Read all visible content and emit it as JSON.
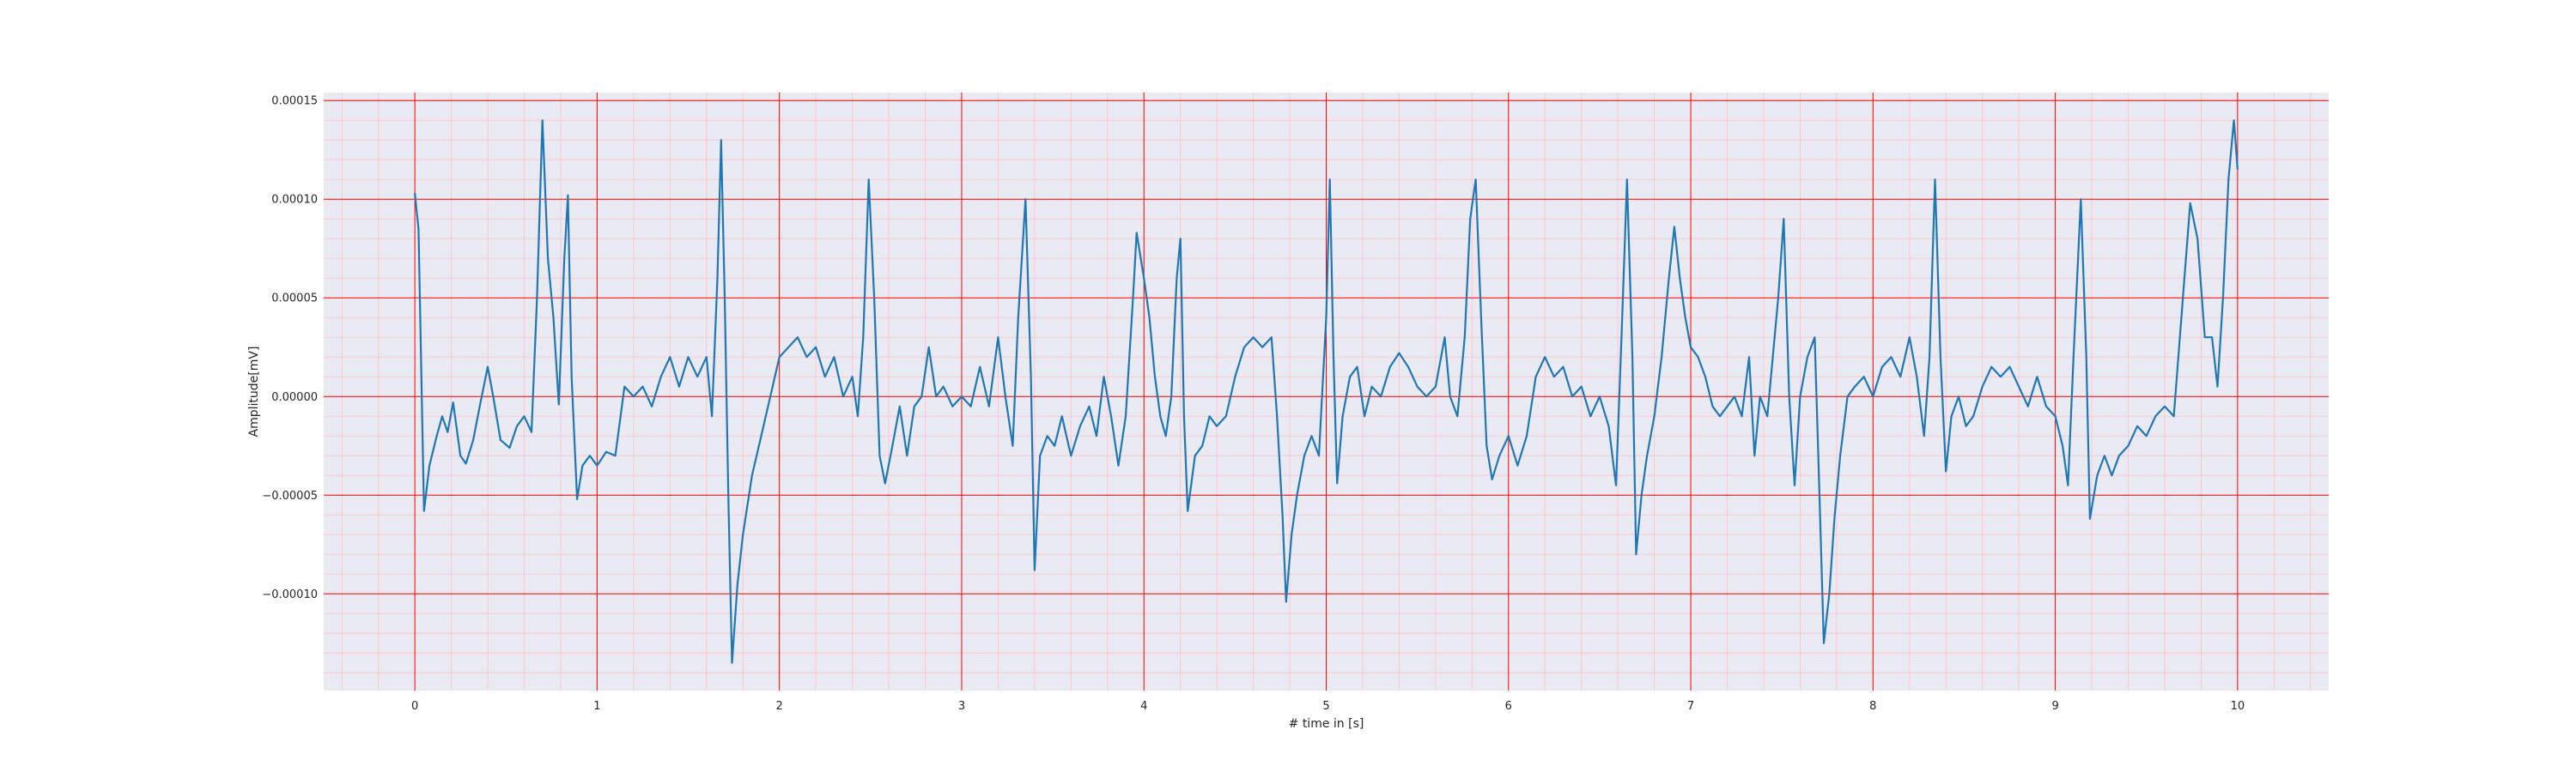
{
  "chart_data": {
    "type": "line",
    "title": "",
    "xlabel": "# time in [s]",
    "ylabel": "Amplitude[mV]",
    "xlim": [
      -0.5,
      10.5
    ],
    "ylim": [
      -0.000149,
      0.000154
    ],
    "xticks": [
      0,
      1,
      2,
      3,
      4,
      5,
      6,
      7,
      8,
      9,
      10
    ],
    "xtick_labels": [
      "0",
      "1",
      "2",
      "3",
      "4",
      "5",
      "6",
      "7",
      "8",
      "9",
      "10"
    ],
    "yticks": [
      -0.0001,
      -5e-05,
      0.0,
      5e-05,
      0.0001,
      0.00015
    ],
    "ytick_labels": [
      "−0.00010",
      "−0.00005",
      "0.00000",
      "0.00005",
      "0.00010",
      "0.00015"
    ],
    "grid": {
      "major": "on",
      "minor": "on"
    },
    "colors": {
      "line": "#1f77b4",
      "plot_background": "#eaeaf2",
      "major_grid": "#ff0000",
      "minor_grid": "#ffc0cb"
    },
    "series": [
      {
        "points": [
          [
            0.0,
            0.000103
          ],
          [
            0.02,
            8.5e-05
          ],
          [
            0.05,
            -5.8e-05
          ],
          [
            0.08,
            -3.5e-05
          ],
          [
            0.12,
            -2e-05
          ],
          [
            0.15,
            -1e-05
          ],
          [
            0.18,
            -1.8e-05
          ],
          [
            0.21,
            -3e-06
          ],
          [
            0.25,
            -3e-05
          ],
          [
            0.28,
            -3.4e-05
          ],
          [
            0.32,
            -2.2e-05
          ],
          [
            0.36,
            -3e-06
          ],
          [
            0.4,
            1.5e-05
          ],
          [
            0.43,
            0.0
          ],
          [
            0.47,
            -2.2e-05
          ],
          [
            0.52,
            -2.6e-05
          ],
          [
            0.56,
            -1.5e-05
          ],
          [
            0.6,
            -1e-05
          ],
          [
            0.64,
            -1.8e-05
          ],
          [
            0.67,
            5e-05
          ],
          [
            0.7,
            0.00014
          ],
          [
            0.73,
            7e-05
          ],
          [
            0.76,
            4e-05
          ],
          [
            0.79,
            -4e-06
          ],
          [
            0.82,
            7e-05
          ],
          [
            0.84,
            0.000102
          ],
          [
            0.86,
            1e-05
          ],
          [
            0.89,
            -5.2e-05
          ],
          [
            0.92,
            -3.5e-05
          ],
          [
            0.96,
            -3e-05
          ],
          [
            1.0,
            -3.5e-05
          ],
          [
            1.05,
            -2.8e-05
          ],
          [
            1.1,
            -3e-05
          ],
          [
            1.15,
            5e-06
          ],
          [
            1.2,
            0.0
          ],
          [
            1.25,
            5e-06
          ],
          [
            1.3,
            -5e-06
          ],
          [
            1.35,
            1e-05
          ],
          [
            1.4,
            2e-05
          ],
          [
            1.45,
            5e-06
          ],
          [
            1.5,
            2e-05
          ],
          [
            1.55,
            1e-05
          ],
          [
            1.6,
            2e-05
          ],
          [
            1.63,
            -1e-05
          ],
          [
            1.66,
            6e-05
          ],
          [
            1.68,
            0.00013
          ],
          [
            1.7,
            5e-05
          ],
          [
            1.72,
            -5e-05
          ],
          [
            1.74,
            -0.000135
          ],
          [
            1.77,
            -9.5e-05
          ],
          [
            1.8,
            -7e-05
          ],
          [
            1.85,
            -4e-05
          ],
          [
            1.9,
            -2e-05
          ],
          [
            1.95,
            0.0
          ],
          [
            2.0,
            2e-05
          ],
          [
            2.05,
            2.5e-05
          ],
          [
            2.1,
            3e-05
          ],
          [
            2.15,
            2e-05
          ],
          [
            2.2,
            2.5e-05
          ],
          [
            2.25,
            1e-05
          ],
          [
            2.3,
            2e-05
          ],
          [
            2.35,
            0.0
          ],
          [
            2.4,
            1e-05
          ],
          [
            2.43,
            -1e-05
          ],
          [
            2.46,
            3e-05
          ],
          [
            2.49,
            0.00011
          ],
          [
            2.52,
            5e-05
          ],
          [
            2.55,
            -3e-05
          ],
          [
            2.58,
            -4.4e-05
          ],
          [
            2.62,
            -2.5e-05
          ],
          [
            2.66,
            -5e-06
          ],
          [
            2.7,
            -3e-05
          ],
          [
            2.74,
            -5e-06
          ],
          [
            2.78,
            0.0
          ],
          [
            2.82,
            2.5e-05
          ],
          [
            2.86,
            0.0
          ],
          [
            2.9,
            5e-06
          ],
          [
            2.95,
            -5e-06
          ],
          [
            3.0,
            0.0
          ],
          [
            3.05,
            -5e-06
          ],
          [
            3.1,
            1.5e-05
          ],
          [
            3.15,
            -5e-06
          ],
          [
            3.2,
            3e-05
          ],
          [
            3.24,
            0.0
          ],
          [
            3.28,
            -2.5e-05
          ],
          [
            3.31,
            4e-05
          ],
          [
            3.35,
            0.0001
          ],
          [
            3.38,
            1e-05
          ],
          [
            3.4,
            -8.8e-05
          ],
          [
            3.43,
            -3e-05
          ],
          [
            3.47,
            -2e-05
          ],
          [
            3.51,
            -2.5e-05
          ],
          [
            3.55,
            -1e-05
          ],
          [
            3.6,
            -3e-05
          ],
          [
            3.65,
            -1.5e-05
          ],
          [
            3.7,
            -5e-06
          ],
          [
            3.74,
            -2e-05
          ],
          [
            3.78,
            1e-05
          ],
          [
            3.82,
            -1e-05
          ],
          [
            3.86,
            -3.5e-05
          ],
          [
            3.9,
            -1e-05
          ],
          [
            3.94,
            5e-05
          ],
          [
            3.96,
            8.3e-05
          ],
          [
            4.0,
            6e-05
          ],
          [
            4.03,
            4e-05
          ],
          [
            4.06,
            1e-05
          ],
          [
            4.09,
            -1e-05
          ],
          [
            4.12,
            -2e-05
          ],
          [
            4.15,
            0.0
          ],
          [
            4.18,
            6e-05
          ],
          [
            4.2,
            8e-05
          ],
          [
            4.22,
            -1e-05
          ],
          [
            4.24,
            -5.8e-05
          ],
          [
            4.28,
            -3e-05
          ],
          [
            4.32,
            -2.5e-05
          ],
          [
            4.36,
            -1e-05
          ],
          [
            4.4,
            -1.5e-05
          ],
          [
            4.45,
            -1e-05
          ],
          [
            4.5,
            1e-05
          ],
          [
            4.55,
            2.5e-05
          ],
          [
            4.6,
            3e-05
          ],
          [
            4.65,
            2.5e-05
          ],
          [
            4.7,
            3e-05
          ],
          [
            4.73,
            -1e-05
          ],
          [
            4.76,
            -6e-05
          ],
          [
            4.78,
            -0.000104
          ],
          [
            4.81,
            -7e-05
          ],
          [
            4.84,
            -5e-05
          ],
          [
            4.88,
            -3e-05
          ],
          [
            4.92,
            -2e-05
          ],
          [
            4.96,
            -3e-05
          ],
          [
            5.0,
            4e-05
          ],
          [
            5.02,
            0.00011
          ],
          [
            5.04,
            2e-05
          ],
          [
            5.06,
            -4.4e-05
          ],
          [
            5.09,
            -1e-05
          ],
          [
            5.13,
            1e-05
          ],
          [
            5.17,
            1.5e-05
          ],
          [
            5.21,
            -1e-05
          ],
          [
            5.25,
            5e-06
          ],
          [
            5.3,
            0.0
          ],
          [
            5.35,
            1.5e-05
          ],
          [
            5.4,
            2.2e-05
          ],
          [
            5.45,
            1.5e-05
          ],
          [
            5.5,
            5e-06
          ],
          [
            5.55,
            0.0
          ],
          [
            5.6,
            5e-06
          ],
          [
            5.65,
            3e-05
          ],
          [
            5.68,
            0.0
          ],
          [
            5.72,
            -1e-05
          ],
          [
            5.76,
            3e-05
          ],
          [
            5.79,
            9e-05
          ],
          [
            5.82,
            0.00011
          ],
          [
            5.85,
            4e-05
          ],
          [
            5.88,
            -2.5e-05
          ],
          [
            5.91,
            -4.2e-05
          ],
          [
            5.95,
            -3e-05
          ],
          [
            6.0,
            -2e-05
          ],
          [
            6.05,
            -3.5e-05
          ],
          [
            6.1,
            -2e-05
          ],
          [
            6.15,
            1e-05
          ],
          [
            6.2,
            2e-05
          ],
          [
            6.25,
            1e-05
          ],
          [
            6.3,
            1.5e-05
          ],
          [
            6.35,
            0.0
          ],
          [
            6.4,
            5e-06
          ],
          [
            6.45,
            -1e-05
          ],
          [
            6.5,
            0.0
          ],
          [
            6.55,
            -1.5e-05
          ],
          [
            6.59,
            -4.5e-05
          ],
          [
            6.62,
            3e-05
          ],
          [
            6.65,
            0.00011
          ],
          [
            6.68,
            2e-05
          ],
          [
            6.7,
            -8e-05
          ],
          [
            6.73,
            -5e-05
          ],
          [
            6.76,
            -3e-05
          ],
          [
            6.8,
            -1e-05
          ],
          [
            6.84,
            2e-05
          ],
          [
            6.88,
            6e-05
          ],
          [
            6.91,
            8.6e-05
          ],
          [
            6.94,
            6e-05
          ],
          [
            6.97,
            4e-05
          ],
          [
            7.0,
            2.5e-05
          ],
          [
            7.04,
            2e-05
          ],
          [
            7.08,
            1e-05
          ],
          [
            7.12,
            -5e-06
          ],
          [
            7.16,
            -1e-05
          ],
          [
            7.2,
            -5e-06
          ],
          [
            7.24,
            0.0
          ],
          [
            7.28,
            -1e-05
          ],
          [
            7.32,
            2e-05
          ],
          [
            7.35,
            -3e-05
          ],
          [
            7.38,
            0.0
          ],
          [
            7.42,
            -1e-05
          ],
          [
            7.45,
            2e-05
          ],
          [
            7.48,
            5e-05
          ],
          [
            7.51,
            9e-05
          ],
          [
            7.54,
            0.0
          ],
          [
            7.57,
            -4.5e-05
          ],
          [
            7.6,
            0.0
          ],
          [
            7.64,
            2e-05
          ],
          [
            7.68,
            3e-05
          ],
          [
            7.7,
            -3e-05
          ],
          [
            7.73,
            -0.000125
          ],
          [
            7.76,
            -0.0001
          ],
          [
            7.79,
            -6e-05
          ],
          [
            7.82,
            -3e-05
          ],
          [
            7.86,
            0.0
          ],
          [
            7.9,
            5e-06
          ],
          [
            7.95,
            1e-05
          ],
          [
            8.0,
            0.0
          ],
          [
            8.05,
            1.5e-05
          ],
          [
            8.1,
            2e-05
          ],
          [
            8.15,
            1e-05
          ],
          [
            8.2,
            3e-05
          ],
          [
            8.24,
            1e-05
          ],
          [
            8.28,
            -2e-05
          ],
          [
            8.31,
            2e-05
          ],
          [
            8.34,
            0.00011
          ],
          [
            8.37,
            2e-05
          ],
          [
            8.4,
            -3.8e-05
          ],
          [
            8.43,
            -1e-05
          ],
          [
            8.47,
            0.0
          ],
          [
            8.51,
            -1.5e-05
          ],
          [
            8.55,
            -1e-05
          ],
          [
            8.6,
            5e-06
          ],
          [
            8.65,
            1.5e-05
          ],
          [
            8.7,
            1e-05
          ],
          [
            8.75,
            1.5e-05
          ],
          [
            8.8,
            5e-06
          ],
          [
            8.85,
            -5e-06
          ],
          [
            8.9,
            1e-05
          ],
          [
            8.95,
            -5e-06
          ],
          [
            9.0,
            -1e-05
          ],
          [
            9.04,
            -2.5e-05
          ],
          [
            9.07,
            -4.5e-05
          ],
          [
            9.1,
            2e-05
          ],
          [
            9.14,
            0.0001
          ],
          [
            9.17,
            2e-05
          ],
          [
            9.19,
            -6.2e-05
          ],
          [
            9.23,
            -4e-05
          ],
          [
            9.27,
            -3e-05
          ],
          [
            9.31,
            -4e-05
          ],
          [
            9.35,
            -3e-05
          ],
          [
            9.4,
            -2.5e-05
          ],
          [
            9.45,
            -1.5e-05
          ],
          [
            9.5,
            -2e-05
          ],
          [
            9.55,
            -1e-05
          ],
          [
            9.6,
            -5e-06
          ],
          [
            9.65,
            -1e-05
          ],
          [
            9.7,
            5e-05
          ],
          [
            9.74,
            9.8e-05
          ],
          [
            9.78,
            8e-05
          ],
          [
            9.82,
            3e-05
          ],
          [
            9.86,
            3e-05
          ],
          [
            9.89,
            5e-06
          ],
          [
            9.92,
            5e-05
          ],
          [
            9.95,
            0.00011
          ],
          [
            9.98,
            0.00014
          ],
          [
            10.0,
            0.000115
          ]
        ]
      }
    ]
  }
}
